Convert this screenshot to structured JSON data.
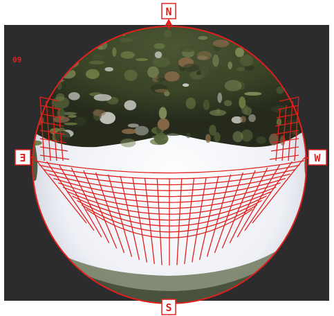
{
  "image_label": "09",
  "compass": {
    "north": "N",
    "south": "S",
    "east": "E",
    "west": "W"
  },
  "colors": {
    "overlay_red": "#e0201c",
    "background_dark": "#2c2c2e",
    "sky_white": "#f4f4f6",
    "foliage_dark": "#3e4a2c",
    "foliage_mid": "#6b7a44"
  },
  "icons": {
    "north_marker": "north-arrow-icon"
  }
}
